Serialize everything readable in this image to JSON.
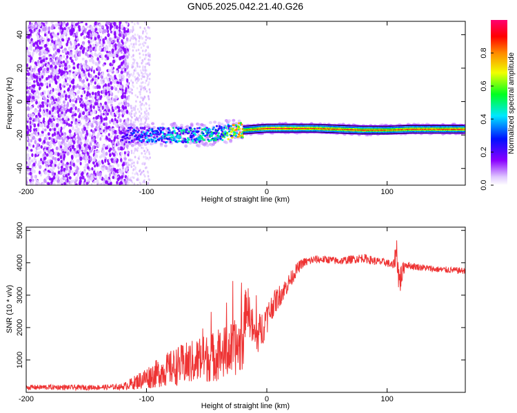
{
  "page_title": "GN05.2025.042.21.40.G26",
  "colors": {
    "snr_line": "#ee3333",
    "spectrogram_cloud": "#7a2cf0",
    "spectrogram_faint": "#d9c4fb",
    "axis": "#000000"
  },
  "chart_data": [
    {
      "type": "heatmap",
      "title": "GN05.2025.042.21.40.G26",
      "xlabel": "Height of straight line (km)",
      "ylabel": "Frequency (Hz)",
      "xlim": [
        -200,
        165
      ],
      "ylim": [
        -50,
        48
      ],
      "x_ticks": [
        -200,
        -100,
        0,
        100
      ],
      "x_tick_labels": [
        "-200",
        "-100",
        "0",
        "100"
      ],
      "y_ticks": [
        -40,
        -20,
        0,
        20,
        40
      ],
      "y_tick_labels": [
        "-40",
        "-20",
        "0",
        "20",
        "40"
      ],
      "grid": false,
      "colorbar": {
        "label": "Normalized spectral amplitude",
        "range": [
          0,
          1
        ],
        "ticks": [
          0.0,
          0.2,
          0.4,
          0.6,
          0.8
        ],
        "tick_labels": [
          "0.0",
          "0.2",
          "0.4",
          "0.6",
          "0.8"
        ],
        "colormap": "rainbow (white → violet → blue → cyan → green → yellow → orange → red → magenta)"
      },
      "signal_track": {
        "description": "dominant narrow spectral line",
        "x": [
          -120,
          -100,
          -80,
          -60,
          -40,
          -20,
          0,
          20,
          40,
          60,
          80,
          100,
          120,
          140,
          165
        ],
        "frequency_hz": [
          -20,
          -20,
          -20,
          -20,
          -19,
          -17,
          -16,
          -16,
          -16,
          -16.5,
          -17,
          -17,
          -16.5,
          -16.5,
          -16.5
        ],
        "peak_amplitude": [
          0.2,
          0.35,
          0.4,
          0.4,
          0.45,
          0.8,
          0.95,
          0.95,
          0.9,
          0.9,
          0.9,
          0.85,
          0.9,
          0.9,
          0.9
        ]
      },
      "noise_region": {
        "x_range": [
          -200,
          -115
        ],
        "frequency_range": [
          -50,
          48
        ],
        "amplitude_range": [
          0.0,
          0.15
        ]
      }
    },
    {
      "type": "line",
      "title": "",
      "xlabel": "Height of straight line (km)",
      "ylabel": "SNR (10 * v/v)",
      "xlim": [
        -200,
        165
      ],
      "ylim": [
        0,
        5100
      ],
      "x_ticks": [
        -200,
        -100,
        0,
        100
      ],
      "x_tick_labels": [
        "-200",
        "-100",
        "0",
        "100"
      ],
      "y_ticks": [
        1000,
        2000,
        3000,
        4000,
        5000
      ],
      "y_tick_labels": [
        "1000",
        "2000",
        "3000",
        "4000",
        "5000"
      ],
      "grid": false,
      "series": [
        {
          "x": [
            -200,
            -180,
            -160,
            -140,
            -120,
            -110,
            -100,
            -90,
            -80,
            -70,
            -60,
            -50,
            -40,
            -30,
            -20,
            -17,
            -10,
            -5,
            0,
            5,
            10,
            15,
            20,
            25,
            30,
            40,
            50,
            60,
            70,
            80,
            90,
            100,
            105,
            108,
            110,
            115,
            120,
            140,
            165
          ],
          "y": [
            150,
            160,
            150,
            155,
            170,
            300,
            450,
            600,
            750,
            850,
            950,
            1050,
            1150,
            1300,
            1500,
            2800,
            1700,
            1900,
            2300,
            2700,
            2950,
            3200,
            3500,
            3800,
            4000,
            4100,
            4100,
            4050,
            4100,
            4150,
            4050,
            4000,
            3900,
            4400,
            3400,
            3950,
            3900,
            3800,
            3750
          ],
          "noise_amplitude": [
            80,
            80,
            80,
            80,
            90,
            220,
            350,
            450,
            550,
            650,
            700,
            750,
            800,
            850,
            900,
            700,
            600,
            600,
            500,
            400,
            350,
            300,
            250,
            200,
            150,
            130,
            120,
            120,
            130,
            140,
            130,
            120,
            150,
            450,
            550,
            120,
            110,
            100,
            100
          ]
        }
      ]
    }
  ]
}
